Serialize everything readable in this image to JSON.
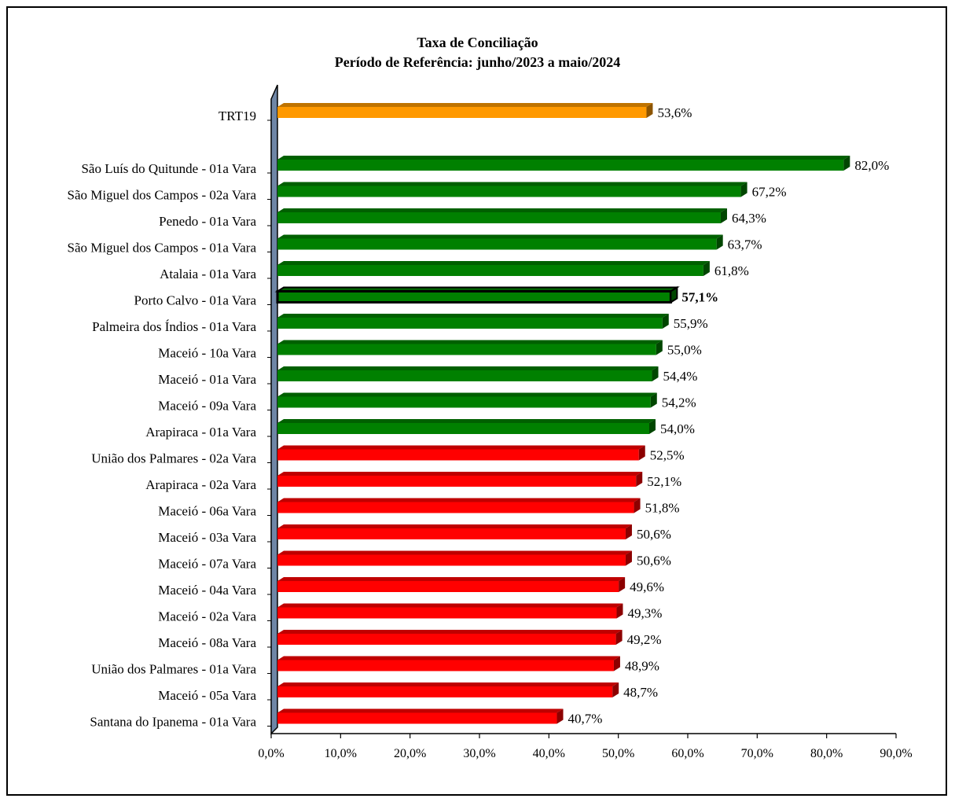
{
  "chart_data": {
    "type": "bar",
    "orientation": "horizontal",
    "title": "Taxa de Conciliação",
    "subtitle": "Período de Referência: junho/2023 a maio/2024",
    "xlabel": "",
    "ylabel": "",
    "xlim": [
      0,
      90
    ],
    "x_ticks": [
      "0,0%",
      "10,0%",
      "20,0%",
      "30,0%",
      "40,0%",
      "50,0%",
      "60,0%",
      "70,0%",
      "80,0%",
      "90,0%"
    ],
    "grid": false,
    "legend": "none",
    "highlighted": "Porto Calvo  - 01a Vara",
    "colors": {
      "total": "#ff9900",
      "above": "#008000",
      "below": "#ff0000",
      "highlight_border": "#000000",
      "wall": "#6f86a6"
    },
    "categories": [
      "TRT19",
      "São Luís do Quitunde  - 01a Vara",
      "São Miguel dos Campos  - 02a Vara",
      "Penedo  - 01a Vara",
      "São Miguel dos Campos  - 01a Vara",
      "Atalaia  - 01a Vara",
      "Porto Calvo  - 01a Vara",
      "Palmeira dos Índios  - 01a Vara",
      "Maceió  - 10a Vara",
      "Maceió  - 01a Vara",
      "Maceió  - 09a Vara",
      "Arapiraca  - 01a Vara",
      "União dos Palmares  - 02a Vara",
      "Arapiraca  - 02a Vara",
      "Maceió  - 06a Vara",
      "Maceió  - 03a Vara",
      "Maceió  - 07a Vara",
      "Maceió  - 04a Vara",
      "Maceió  - 02a Vara",
      "Maceió  - 08a Vara",
      "União dos Palmares  - 01a Vara",
      "Maceió  - 05a Vara",
      "Santana do Ipanema  - 01a Vara"
    ],
    "values": [
      53.6,
      82.0,
      67.2,
      64.3,
      63.7,
      61.8,
      57.1,
      55.9,
      55.0,
      54.4,
      54.2,
      54.0,
      52.5,
      52.1,
      51.8,
      50.6,
      50.6,
      49.6,
      49.3,
      49.2,
      48.9,
      48.7,
      40.7
    ],
    "value_labels": [
      "53,6%",
      "82,0%",
      "67,2%",
      "64,3%",
      "63,7%",
      "61,8%",
      "57,1%",
      "55,9%",
      "55,0%",
      "54,4%",
      "54,2%",
      "54,0%",
      "52,5%",
      "52,1%",
      "51,8%",
      "50,6%",
      "50,6%",
      "49,6%",
      "49,3%",
      "49,2%",
      "48,9%",
      "48,7%",
      "40,7%"
    ],
    "bar_groups": [
      "total",
      "above",
      "above",
      "above",
      "above",
      "above",
      "above",
      "above",
      "above",
      "above",
      "above",
      "above",
      "below",
      "below",
      "below",
      "below",
      "below",
      "below",
      "below",
      "below",
      "below",
      "below",
      "below"
    ]
  }
}
